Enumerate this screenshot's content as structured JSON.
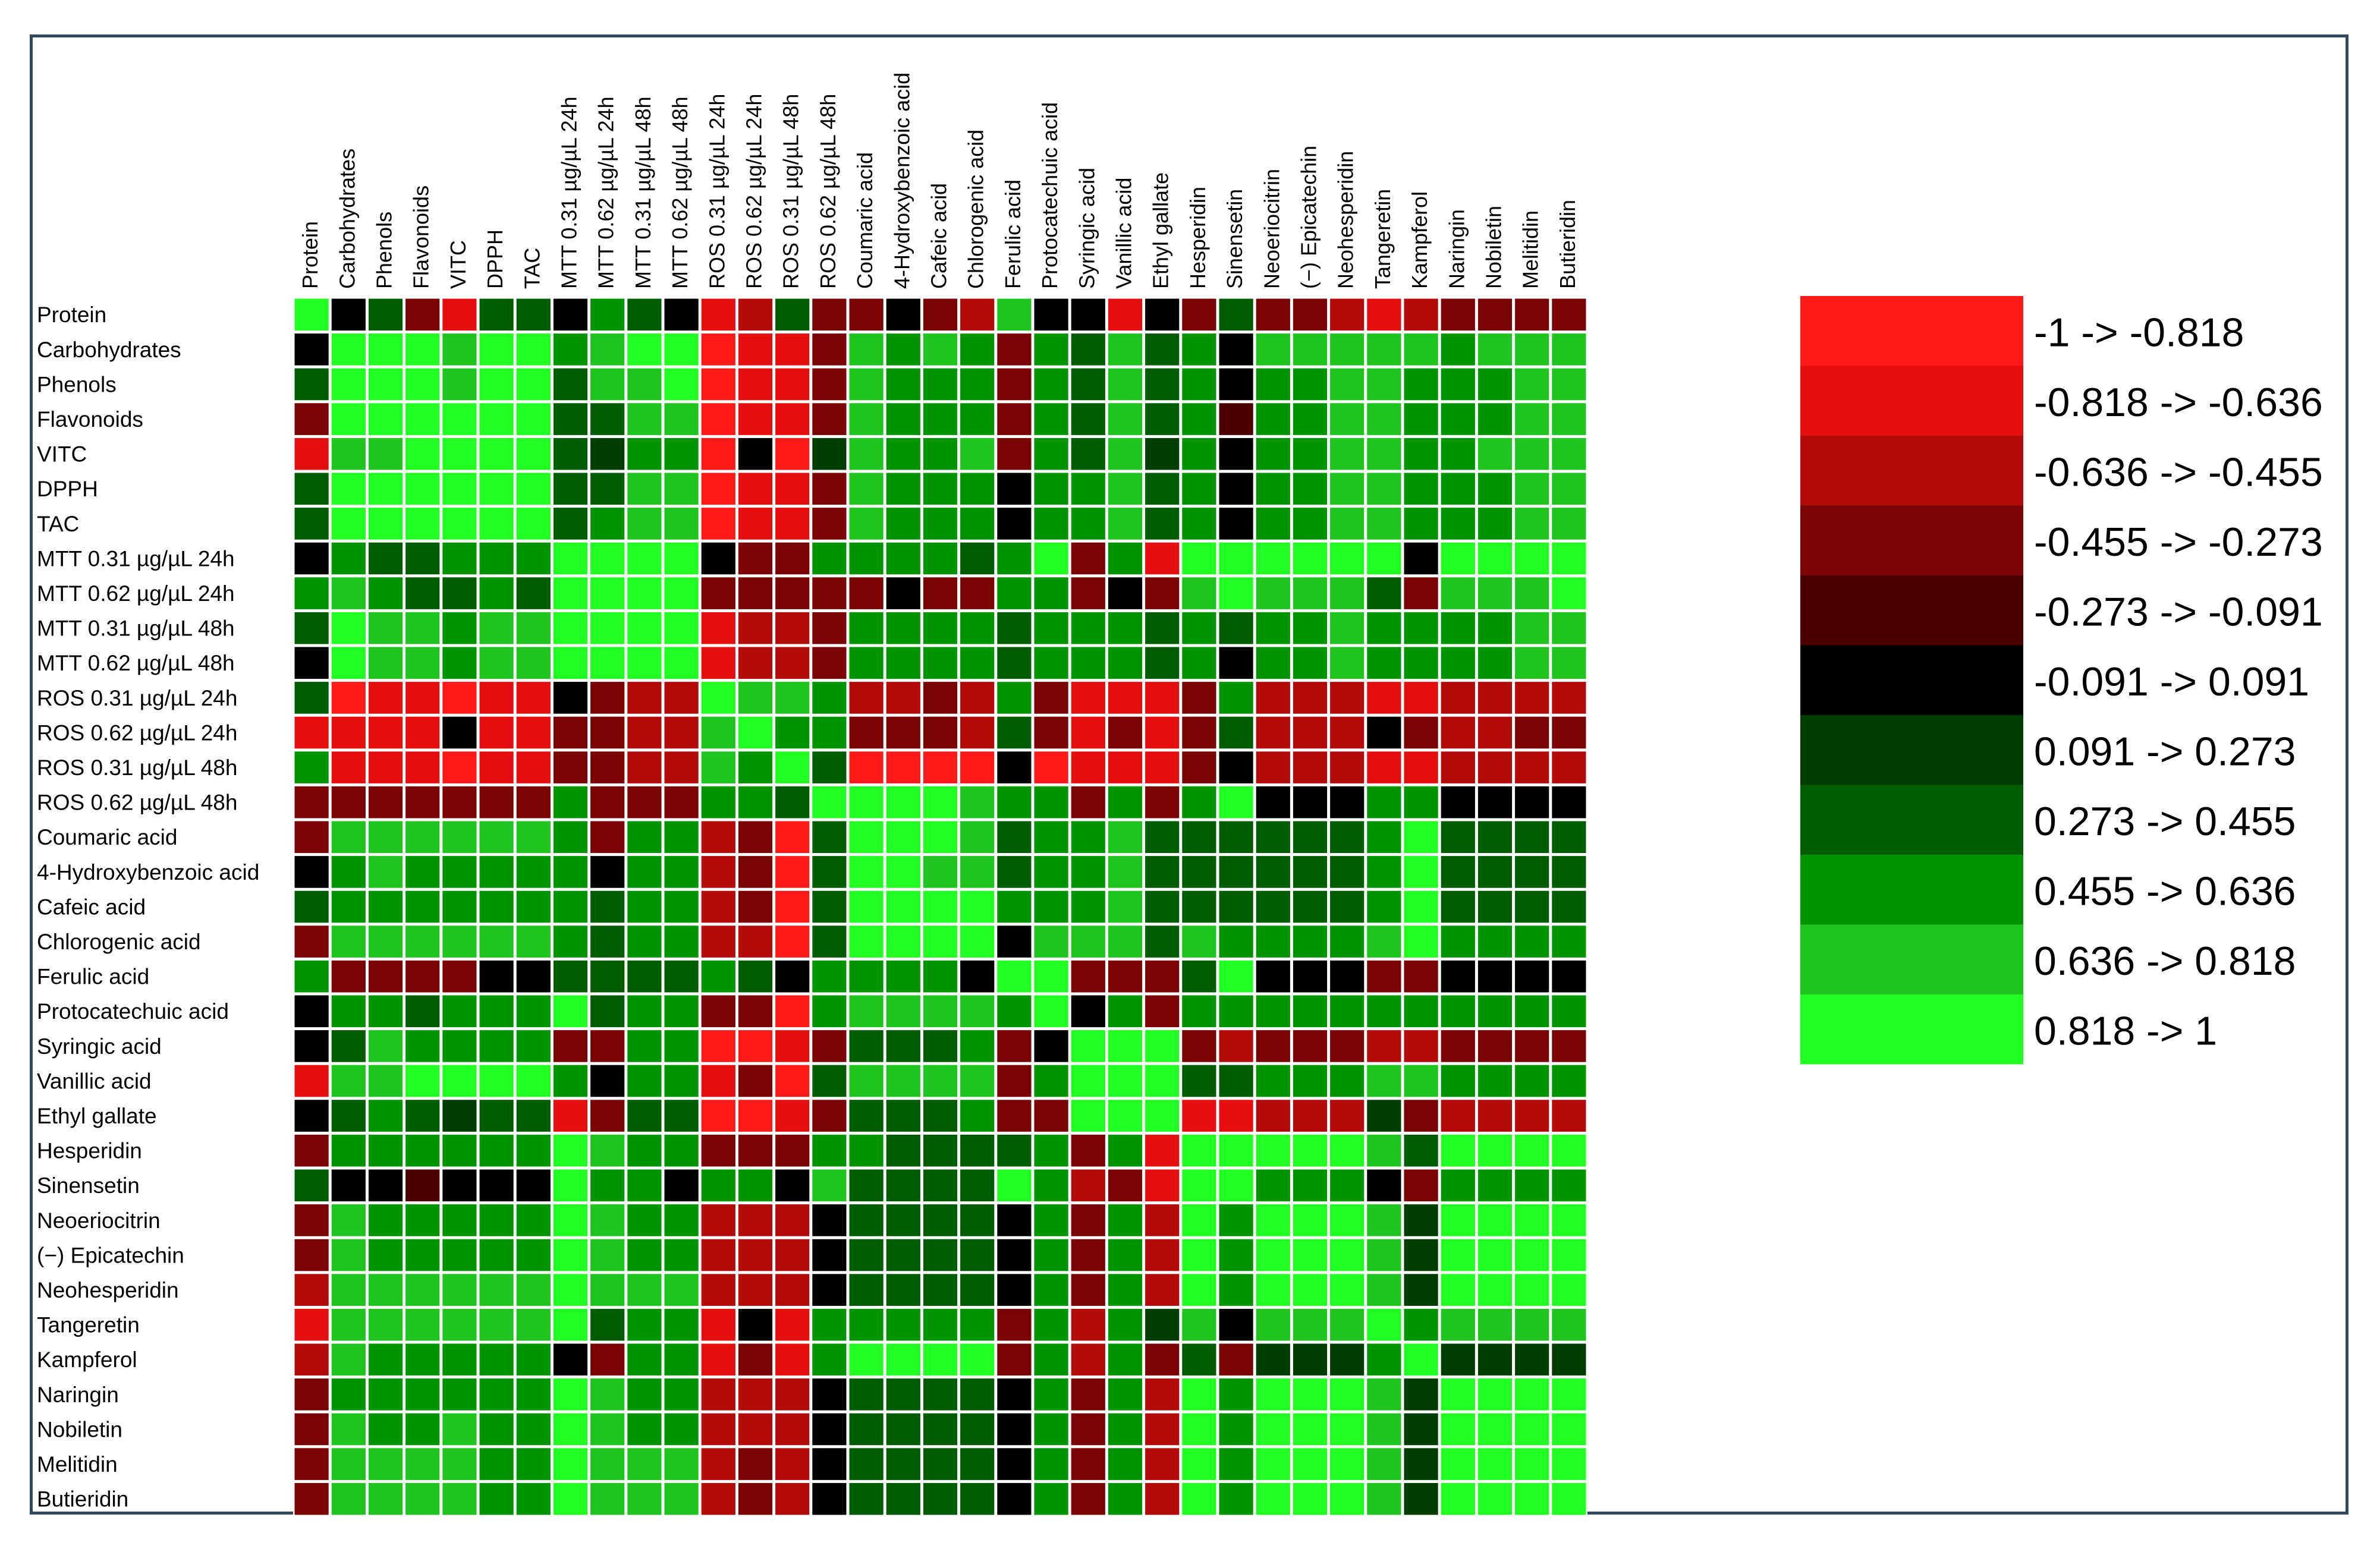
{
  "chart_data": {
    "type": "heatmap",
    "title": "",
    "variables": [
      "Protein",
      "Carbohydrates",
      "Phenols",
      "Flavonoids",
      "VITC",
      "DPPH",
      "TAC",
      "MTT 0.31 µg/µL 24h",
      "MTT 0.62 µg/µL 24h",
      "MTT 0.31 µg/µL 48h",
      "MTT 0.62 µg/µL 48h",
      "ROS 0.31 µg/µL 24h",
      "ROS 0.62 µg/µL 24h",
      "ROS 0.31 µg/µL 48h",
      "ROS 0.62 µg/µL 48h",
      "Coumaric acid",
      "4-Hydroxybenzoic acid",
      "Cafeic acid",
      "Chlorogenic acid",
      "Ferulic acid",
      "Protocatechuic acid",
      "Syringic acid",
      "Vanillic acid",
      "Ethyl gallate",
      "Hesperidin",
      "Sinensetin",
      "Neoeriocitrin",
      "(−) Epicatechin",
      "Neohesperidin",
      "Tangeretin",
      "Kampferol",
      "Naringin",
      "Nobiletin",
      "Melitidin",
      "Butieridin"
    ],
    "value_range": [
      -1,
      1
    ],
    "matrix_note": "values are class midpoints of the binned color scale",
    "matrix": [
      [
        0.9,
        0.0,
        0.4,
        -0.4,
        -0.7,
        0.4,
        0.4,
        0.0,
        0.5,
        0.4,
        0.0,
        -0.7,
        -0.6,
        0.4,
        -0.3,
        -0.4,
        0.0,
        -0.4,
        -0.6,
        0.7,
        0.0,
        0.0,
        -0.7,
        0.0,
        -0.3,
        0.4,
        -0.4,
        -0.4,
        -0.5,
        -0.7,
        -0.6,
        -0.4,
        -0.4,
        -0.4,
        -0.4
      ],
      [
        0.0,
        0.9,
        0.9,
        0.9,
        0.7,
        0.9,
        0.9,
        0.5,
        0.7,
        0.9,
        0.9,
        -0.9,
        -0.7,
        -0.7,
        -0.4,
        0.7,
        0.5,
        0.7,
        0.5,
        -0.4,
        0.5,
        0.4,
        0.7,
        0.4,
        0.5,
        0.0,
        0.7,
        0.7,
        0.7,
        0.7,
        0.7,
        0.5,
        0.7,
        0.7,
        0.7
      ],
      [
        0.4,
        0.9,
        0.9,
        0.9,
        0.7,
        0.9,
        0.9,
        0.4,
        0.7,
        0.7,
        0.9,
        -0.9,
        -0.7,
        -0.7,
        -0.3,
        0.7,
        0.5,
        0.5,
        0.5,
        -0.4,
        0.5,
        0.4,
        0.7,
        0.4,
        0.5,
        0.0,
        0.5,
        0.5,
        0.7,
        0.7,
        0.5,
        0.5,
        0.5,
        0.7,
        0.7
      ],
      [
        -0.3,
        0.9,
        0.9,
        0.9,
        0.9,
        0.9,
        0.9,
        0.4,
        0.4,
        0.7,
        0.7,
        -0.9,
        -0.7,
        -0.7,
        -0.3,
        0.7,
        0.5,
        0.5,
        0.5,
        -0.4,
        0.5,
        0.4,
        0.7,
        0.4,
        0.5,
        -0.2,
        0.5,
        0.5,
        0.7,
        0.7,
        0.5,
        0.5,
        0.5,
        0.7,
        0.7
      ],
      [
        -0.7,
        0.7,
        0.7,
        0.9,
        0.9,
        0.9,
        0.9,
        0.4,
        0.2,
        0.5,
        0.5,
        -0.9,
        0.0,
        -0.9,
        0.2,
        0.7,
        0.5,
        0.5,
        0.7,
        -0.3,
        0.5,
        0.4,
        0.7,
        0.2,
        0.5,
        0.0,
        0.5,
        0.5,
        0.7,
        0.7,
        0.5,
        0.5,
        0.7,
        0.7,
        0.7
      ],
      [
        0.4,
        0.9,
        0.9,
        0.9,
        0.9,
        0.9,
        0.9,
        0.4,
        0.4,
        0.7,
        0.7,
        -0.9,
        -0.7,
        -0.7,
        -0.3,
        0.7,
        0.5,
        0.5,
        0.5,
        0.0,
        0.5,
        0.5,
        0.7,
        0.4,
        0.5,
        0.0,
        0.5,
        0.5,
        0.7,
        0.7,
        0.5,
        0.5,
        0.5,
        0.7,
        0.7
      ],
      [
        0.4,
        0.9,
        0.9,
        0.9,
        0.9,
        0.9,
        0.9,
        0.4,
        0.5,
        0.7,
        0.7,
        -0.9,
        -0.7,
        -0.7,
        -0.3,
        0.7,
        0.5,
        0.5,
        0.5,
        0.0,
        0.5,
        0.5,
        0.7,
        0.4,
        0.5,
        0.0,
        0.5,
        0.5,
        0.7,
        0.7,
        0.5,
        0.5,
        0.5,
        0.7,
        0.7
      ],
      [
        0.0,
        0.5,
        0.4,
        0.4,
        0.5,
        0.5,
        0.5,
        0.9,
        0.9,
        0.9,
        0.9,
        0.0,
        -0.4,
        -0.4,
        0.5,
        0.5,
        0.5,
        0.5,
        0.4,
        0.5,
        0.9,
        -0.4,
        0.5,
        -0.7,
        0.9,
        0.9,
        0.9,
        0.9,
        0.9,
        0.9,
        0.0,
        0.9,
        0.9,
        0.9,
        0.9
      ],
      [
        0.5,
        0.7,
        0.5,
        0.4,
        0.4,
        0.5,
        0.4,
        0.9,
        0.9,
        0.9,
        0.9,
        -0.3,
        -0.4,
        -0.4,
        -0.4,
        -0.3,
        0.0,
        -0.3,
        -0.4,
        0.5,
        0.5,
        -0.3,
        0.0,
        -0.4,
        0.7,
        0.9,
        0.7,
        0.7,
        0.7,
        0.4,
        -0.4,
        0.7,
        0.7,
        0.7,
        0.9
      ],
      [
        0.4,
        0.9,
        0.7,
        0.7,
        0.5,
        0.7,
        0.7,
        0.9,
        0.9,
        0.9,
        0.9,
        -0.7,
        -0.6,
        -0.6,
        -0.3,
        0.5,
        0.5,
        0.5,
        0.5,
        0.4,
        0.5,
        0.5,
        0.5,
        0.4,
        0.5,
        0.4,
        0.5,
        0.5,
        0.7,
        0.5,
        0.5,
        0.5,
        0.5,
        0.7,
        0.7
      ],
      [
        0.0,
        0.9,
        0.7,
        0.7,
        0.5,
        0.7,
        0.7,
        0.9,
        0.9,
        0.9,
        0.9,
        -0.7,
        -0.6,
        -0.6,
        -0.3,
        0.5,
        0.5,
        0.5,
        0.5,
        0.4,
        0.5,
        0.5,
        0.5,
        0.4,
        0.5,
        0.0,
        0.5,
        0.5,
        0.7,
        0.5,
        0.5,
        0.5,
        0.5,
        0.7,
        0.7
      ],
      [
        0.4,
        -0.9,
        -0.7,
        -0.7,
        -0.9,
        -0.7,
        -0.7,
        0.0,
        -0.4,
        -0.6,
        -0.6,
        0.9,
        0.7,
        0.7,
        0.5,
        -0.6,
        -0.6,
        -0.4,
        -0.6,
        0.5,
        -0.4,
        -0.7,
        -0.7,
        -0.7,
        -0.4,
        0.5,
        -0.5,
        -0.5,
        -0.5,
        -0.7,
        -0.7,
        -0.5,
        -0.5,
        -0.5,
        -0.5
      ],
      [
        -0.7,
        -0.7,
        -0.7,
        -0.7,
        0.0,
        -0.7,
        -0.7,
        -0.4,
        -0.3,
        -0.6,
        -0.6,
        0.7,
        0.9,
        0.5,
        0.5,
        -0.3,
        -0.3,
        -0.4,
        -0.6,
        0.4,
        -0.4,
        -0.7,
        -0.3,
        -0.7,
        -0.4,
        0.4,
        -0.5,
        -0.5,
        -0.5,
        0.0,
        -0.4,
        -0.5,
        -0.5,
        -0.4,
        -0.4
      ],
      [
        0.5,
        -0.7,
        -0.7,
        -0.7,
        -0.9,
        -0.7,
        -0.7,
        -0.3,
        -0.4,
        -0.6,
        -0.6,
        0.7,
        0.5,
        0.9,
        0.4,
        -0.9,
        -0.9,
        -0.9,
        -0.9,
        0.0,
        -0.9,
        -0.7,
        -0.7,
        -0.7,
        -0.4,
        0.0,
        -0.6,
        -0.6,
        -0.6,
        -0.7,
        -0.7,
        -0.6,
        -0.6,
        -0.6,
        -0.6
      ],
      [
        -0.3,
        -0.4,
        -0.3,
        -0.3,
        -0.4,
        -0.3,
        -0.3,
        0.5,
        -0.4,
        -0.3,
        -0.3,
        0.5,
        0.5,
        0.4,
        0.9,
        0.9,
        0.9,
        0.9,
        0.7,
        0.5,
        0.5,
        -0.4,
        0.5,
        -0.4,
        0.5,
        0.9,
        0.0,
        0.0,
        0.0,
        0.5,
        0.5,
        0.0,
        0.0,
        0.0,
        0.0
      ],
      [
        -0.3,
        0.7,
        0.7,
        0.7,
        0.7,
        0.7,
        0.7,
        0.5,
        -0.3,
        0.5,
        0.5,
        -0.6,
        -0.4,
        -0.9,
        0.4,
        0.9,
        0.9,
        0.9,
        0.7,
        0.4,
        0.5,
        0.5,
        0.7,
        0.4,
        0.4,
        0.4,
        0.4,
        0.4,
        0.4,
        0.5,
        0.9,
        0.4,
        0.4,
        0.4,
        0.4
      ],
      [
        0.0,
        0.5,
        0.7,
        0.5,
        0.5,
        0.5,
        0.5,
        0.5,
        0.0,
        0.5,
        0.5,
        -0.6,
        -0.3,
        -0.9,
        0.4,
        0.9,
        0.9,
        0.7,
        0.7,
        0.4,
        0.5,
        0.5,
        0.7,
        0.4,
        0.4,
        0.4,
        0.4,
        0.4,
        0.4,
        0.5,
        0.9,
        0.4,
        0.4,
        0.4,
        0.4
      ],
      [
        0.4,
        0.5,
        0.5,
        0.5,
        0.5,
        0.5,
        0.5,
        0.5,
        0.4,
        0.5,
        0.5,
        -0.6,
        -0.4,
        -0.9,
        0.4,
        0.9,
        0.9,
        0.9,
        0.9,
        0.5,
        0.5,
        0.5,
        0.7,
        0.4,
        0.4,
        0.4,
        0.4,
        0.4,
        0.4,
        0.5,
        0.9,
        0.4,
        0.4,
        0.4,
        0.4
      ],
      [
        -0.3,
        0.7,
        0.7,
        0.7,
        0.7,
        0.7,
        0.7,
        0.5,
        0.4,
        0.5,
        0.5,
        -0.6,
        -0.6,
        -0.9,
        0.4,
        0.9,
        0.9,
        0.9,
        0.9,
        0.0,
        0.7,
        0.7,
        0.7,
        0.4,
        0.7,
        0.5,
        0.5,
        0.5,
        0.5,
        0.7,
        0.9,
        0.5,
        0.5,
        0.5,
        0.5
      ],
      [
        0.5,
        -0.4,
        -0.4,
        -0.4,
        -0.4,
        0.0,
        0.0,
        0.4,
        0.4,
        0.4,
        0.4,
        0.5,
        0.4,
        0.0,
        0.5,
        0.5,
        0.5,
        0.5,
        0.0,
        0.9,
        0.9,
        -0.4,
        -0.4,
        -0.4,
        0.4,
        0.9,
        0.0,
        0.0,
        0.0,
        -0.4,
        -0.4,
        0.0,
        0.0,
        0.0,
        0.0
      ],
      [
        0.0,
        0.5,
        0.5,
        0.4,
        0.5,
        0.5,
        0.5,
        0.9,
        0.4,
        0.5,
        0.5,
        -0.3,
        -0.4,
        -0.9,
        0.5,
        0.7,
        0.7,
        0.7,
        0.7,
        0.5,
        0.9,
        0.0,
        0.5,
        -0.3,
        0.5,
        0.5,
        0.5,
        0.5,
        0.5,
        0.5,
        0.5,
        0.5,
        0.5,
        0.5,
        0.5
      ],
      [
        0.0,
        0.4,
        0.7,
        0.5,
        0.5,
        0.5,
        0.5,
        -0.4,
        -0.3,
        0.5,
        0.5,
        -0.9,
        -0.9,
        -0.7,
        -0.4,
        0.4,
        0.4,
        0.4,
        0.5,
        -0.4,
        0.0,
        0.9,
        0.9,
        0.9,
        -0.4,
        -0.6,
        -0.4,
        -0.4,
        -0.4,
        -0.6,
        -0.6,
        -0.4,
        -0.3,
        -0.4,
        -0.3
      ],
      [
        -0.7,
        0.7,
        0.7,
        0.9,
        0.9,
        0.9,
        0.9,
        0.5,
        0.0,
        0.5,
        0.5,
        -0.7,
        -0.3,
        -0.9,
        0.4,
        0.7,
        0.7,
        0.7,
        0.7,
        -0.4,
        0.5,
        0.9,
        0.9,
        0.9,
        0.4,
        0.4,
        0.5,
        0.5,
        0.5,
        0.7,
        0.7,
        0.5,
        0.5,
        0.5,
        0.5
      ],
      [
        0.0,
        0.4,
        0.5,
        0.4,
        0.2,
        0.4,
        0.4,
        -0.7,
        -0.4,
        0.4,
        0.4,
        -0.9,
        -0.9,
        -0.7,
        -0.4,
        0.4,
        0.4,
        0.4,
        0.5,
        -0.4,
        -0.3,
        0.9,
        0.9,
        0.9,
        -0.7,
        -0.7,
        -0.5,
        -0.5,
        -0.5,
        0.2,
        -0.4,
        -0.5,
        -0.5,
        -0.5,
        -0.5
      ],
      [
        -0.3,
        0.5,
        0.5,
        0.5,
        0.5,
        0.5,
        0.5,
        0.9,
        0.7,
        0.5,
        0.5,
        -0.4,
        -0.4,
        -0.4,
        0.5,
        0.5,
        0.4,
        0.4,
        0.4,
        0.4,
        0.5,
        -0.4,
        0.5,
        -0.7,
        0.9,
        0.9,
        0.9,
        0.9,
        0.9,
        0.7,
        0.4,
        0.9,
        0.9,
        0.9,
        0.9
      ],
      [
        0.4,
        0.0,
        0.0,
        -0.2,
        0.0,
        0.0,
        0.0,
        0.9,
        0.5,
        0.5,
        0.0,
        0.5,
        0.5,
        0.0,
        0.7,
        0.4,
        0.4,
        0.4,
        0.4,
        0.9,
        0.5,
        -0.6,
        -0.3,
        -0.7,
        0.9,
        0.9,
        0.5,
        0.5,
        0.5,
        0.0,
        -0.3,
        0.5,
        0.5,
        0.5,
        0.5
      ],
      [
        -0.4,
        0.7,
        0.5,
        0.5,
        0.5,
        0.5,
        0.5,
        0.9,
        0.7,
        0.5,
        0.5,
        -0.5,
        -0.5,
        -0.6,
        0.0,
        0.4,
        0.4,
        0.4,
        0.4,
        0.0,
        0.5,
        -0.4,
        0.5,
        -0.5,
        0.9,
        0.5,
        0.9,
        0.9,
        0.9,
        0.7,
        0.2,
        0.9,
        0.9,
        0.9,
        0.9
      ],
      [
        -0.4,
        0.7,
        0.5,
        0.5,
        0.5,
        0.5,
        0.5,
        0.9,
        0.7,
        0.5,
        0.5,
        -0.5,
        -0.5,
        -0.6,
        0.0,
        0.4,
        0.4,
        0.4,
        0.4,
        0.0,
        0.5,
        -0.4,
        0.5,
        -0.5,
        0.9,
        0.5,
        0.9,
        0.9,
        0.9,
        0.7,
        0.2,
        0.9,
        0.9,
        0.9,
        0.9
      ],
      [
        -0.5,
        0.7,
        0.7,
        0.7,
        0.7,
        0.7,
        0.7,
        0.9,
        0.7,
        0.7,
        0.7,
        -0.5,
        -0.5,
        -0.6,
        0.0,
        0.4,
        0.4,
        0.4,
        0.4,
        0.0,
        0.5,
        -0.4,
        0.5,
        -0.5,
        0.9,
        0.5,
        0.9,
        0.9,
        0.9,
        0.7,
        0.2,
        0.9,
        0.9,
        0.9,
        0.9
      ],
      [
        -0.7,
        0.7,
        0.7,
        0.7,
        0.7,
        0.7,
        0.7,
        0.9,
        0.4,
        0.5,
        0.5,
        -0.7,
        0.0,
        -0.7,
        0.5,
        0.5,
        0.5,
        0.5,
        0.5,
        -0.4,
        0.5,
        -0.6,
        0.5,
        0.2,
        0.7,
        0.0,
        0.7,
        0.7,
        0.7,
        0.9,
        0.5,
        0.7,
        0.7,
        0.7,
        0.7
      ],
      [
        -0.6,
        0.7,
        0.5,
        0.5,
        0.5,
        0.5,
        0.5,
        0.0,
        -0.4,
        0.5,
        0.5,
        -0.7,
        -0.4,
        -0.7,
        0.5,
        0.9,
        0.9,
        0.9,
        0.9,
        -0.4,
        0.5,
        -0.6,
        0.5,
        -0.4,
        0.4,
        -0.3,
        0.2,
        0.2,
        0.2,
        0.5,
        0.9,
        0.2,
        0.2,
        0.2,
        0.2
      ],
      [
        -0.4,
        0.5,
        0.5,
        0.5,
        0.5,
        0.5,
        0.5,
        0.9,
        0.7,
        0.5,
        0.5,
        -0.5,
        -0.5,
        -0.6,
        0.0,
        0.4,
        0.4,
        0.4,
        0.4,
        0.0,
        0.5,
        -0.4,
        0.5,
        -0.5,
        0.9,
        0.5,
        0.9,
        0.9,
        0.9,
        0.7,
        0.2,
        0.9,
        0.9,
        0.9,
        0.9
      ],
      [
        -0.4,
        0.7,
        0.5,
        0.5,
        0.7,
        0.5,
        0.5,
        0.9,
        0.7,
        0.5,
        0.5,
        -0.5,
        -0.5,
        -0.6,
        0.0,
        0.4,
        0.4,
        0.4,
        0.4,
        0.0,
        0.5,
        -0.3,
        0.5,
        -0.5,
        0.9,
        0.5,
        0.9,
        0.9,
        0.9,
        0.7,
        0.2,
        0.9,
        0.9,
        0.9,
        0.9
      ],
      [
        -0.4,
        0.7,
        0.7,
        0.7,
        0.7,
        0.5,
        0.5,
        0.9,
        0.7,
        0.7,
        0.7,
        -0.5,
        -0.4,
        -0.6,
        0.0,
        0.4,
        0.4,
        0.4,
        0.4,
        0.0,
        0.5,
        -0.4,
        0.5,
        -0.5,
        0.9,
        0.5,
        0.9,
        0.9,
        0.9,
        0.7,
        0.2,
        0.9,
        0.9,
        0.9,
        0.9
      ],
      [
        -0.4,
        0.7,
        0.7,
        0.7,
        0.7,
        0.5,
        0.5,
        0.9,
        0.7,
        0.7,
        0.7,
        -0.5,
        -0.4,
        -0.6,
        0.0,
        0.4,
        0.4,
        0.4,
        0.4,
        0.0,
        0.5,
        -0.3,
        0.5,
        -0.5,
        0.9,
        0.5,
        0.9,
        0.9,
        0.9,
        0.7,
        0.2,
        0.9,
        0.9,
        0.9,
        0.9
      ]
    ],
    "legend": {
      "placement": "right",
      "bins": [
        {
          "label": "-1 -> -0.818",
          "min": -1,
          "max": -0.818,
          "color": "#ff1a1a"
        },
        {
          "label": "-0.818 -> -0.636",
          "min": -0.818,
          "max": -0.636,
          "color": "#e60f0f"
        },
        {
          "label": "-0.636 -> -0.455",
          "min": -0.636,
          "max": -0.455,
          "color": "#b30a0a"
        },
        {
          "label": "-0.455 -> -0.273",
          "min": -0.455,
          "max": -0.273,
          "color": "#7a0303"
        },
        {
          "label": "-0.273 -> -0.091",
          "min": -0.273,
          "max": -0.091,
          "color": "#4d0000"
        },
        {
          "label": "-0.091 -> 0.091",
          "min": -0.091,
          "max": 0.091,
          "color": "#000000"
        },
        {
          "label": "0.091 -> 0.273",
          "min": 0.091,
          "max": 0.273,
          "color": "#003d00"
        },
        {
          "label": "0.273 -> 0.455",
          "min": 0.273,
          "max": 0.455,
          "color": "#005c00"
        },
        {
          "label": "0.455 -> 0.636",
          "min": 0.455,
          "max": 0.636,
          "color": "#009400"
        },
        {
          "label": "0.636 -> 0.818",
          "min": 0.636,
          "max": 0.818,
          "color": "#1fc41f"
        },
        {
          "label": "0.818 -> 1",
          "min": 0.818,
          "max": 1,
          "color": "#22ff22"
        }
      ]
    }
  }
}
